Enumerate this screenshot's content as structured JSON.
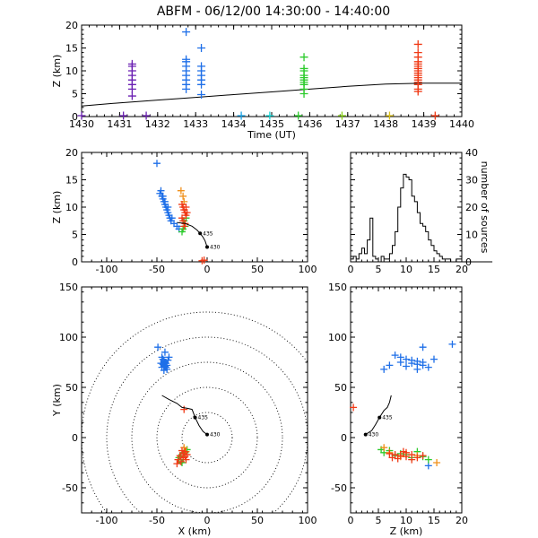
{
  "title": "ABFM - 06/12/00 14:30:00 - 14:40:00",
  "colors": {
    "purple": "#6a1fb2",
    "blue": "#1e6fe8",
    "lightblue": "#1aa4e8",
    "cyan": "#18d7d7",
    "green": "#2ccb2c",
    "lime": "#8ad21b",
    "yellow": "#ddc21a",
    "orange": "#f0901a",
    "red": "#f03a16",
    "track": "#000000"
  },
  "chart_data": [
    {
      "id": "time_height",
      "type": "scatter",
      "xlabel": "Time (UT)",
      "ylabel": "Z (km)",
      "xlim": [
        1430,
        1440
      ],
      "ylim": [
        0,
        20
      ],
      "xticks": [
        "1430",
        "1431",
        "1432",
        "1433",
        "1434",
        "1435",
        "1436",
        "1437",
        "1438",
        "1439",
        "1440"
      ],
      "yticks": [
        "0",
        "5",
        "10",
        "15",
        "20"
      ],
      "series": [
        {
          "color": "purple",
          "points": [
            [
              1431.33,
              4.5
            ],
            [
              1431.33,
              6
            ],
            [
              1431.33,
              7
            ],
            [
              1431.33,
              8
            ],
            [
              1431.33,
              9
            ],
            [
              1431.33,
              10
            ],
            [
              1431.33,
              11
            ],
            [
              1431.33,
              11.5
            ]
          ]
        },
        {
          "color": "blue",
          "points": [
            [
              1432.75,
              6
            ],
            [
              1432.75,
              7
            ],
            [
              1432.75,
              8
            ],
            [
              1432.75,
              9
            ],
            [
              1432.75,
              10
            ],
            [
              1432.75,
              11
            ],
            [
              1432.75,
              12
            ],
            [
              1432.75,
              12.5
            ],
            [
              1432.75,
              18.5
            ],
            [
              1433.15,
              4.8
            ],
            [
              1433.15,
              7
            ],
            [
              1433.15,
              8
            ],
            [
              1433.15,
              9
            ],
            [
              1433.15,
              10
            ],
            [
              1433.15,
              11
            ],
            [
              1433.15,
              15
            ]
          ]
        },
        {
          "color": "green",
          "points": [
            [
              1435.85,
              5
            ],
            [
              1435.85,
              6
            ],
            [
              1435.85,
              7
            ],
            [
              1435.85,
              7.5
            ],
            [
              1435.85,
              8
            ],
            [
              1435.85,
              8.5
            ],
            [
              1435.85,
              9
            ],
            [
              1435.85,
              10
            ],
            [
              1435.85,
              10.5
            ],
            [
              1435.85,
              13
            ]
          ]
        },
        {
          "color": "red",
          "points": [
            [
              1438.85,
              5.5
            ],
            [
              1438.85,
              6
            ],
            [
              1438.85,
              7
            ],
            [
              1438.85,
              7.5
            ],
            [
              1438.85,
              8
            ],
            [
              1438.85,
              8.5
            ],
            [
              1438.85,
              9
            ],
            [
              1438.85,
              9.5
            ],
            [
              1438.85,
              10
            ],
            [
              1438.85,
              10.5
            ],
            [
              1438.85,
              11
            ],
            [
              1438.85,
              11.5
            ],
            [
              1438.85,
              12
            ],
            [
              1438.85,
              13
            ],
            [
              1438.85,
              14
            ],
            [
              1438.85,
              15.8
            ]
          ]
        },
        {
          "color": "purple",
          "points": [
            [
              1430.0,
              0.2
            ],
            [
              1431.1,
              0.2
            ],
            [
              1431.7,
              0.2
            ]
          ]
        },
        {
          "color": "lightblue",
          "points": [
            [
              1434.2,
              0.2
            ]
          ]
        },
        {
          "color": "cyan",
          "points": [
            [
              1434.95,
              0.2
            ]
          ]
        },
        {
          "color": "green",
          "points": [
            [
              1435.7,
              0.2
            ]
          ]
        },
        {
          "color": "lime",
          "points": [
            [
              1436.85,
              0.2
            ]
          ]
        },
        {
          "color": "yellow",
          "points": [
            [
              1438.1,
              0.2
            ]
          ]
        },
        {
          "color": "red",
          "points": [
            [
              1439.3,
              0.2
            ]
          ]
        }
      ],
      "line": [
        [
          1430,
          2.3
        ],
        [
          1431,
          3.0
        ],
        [
          1432,
          3.6
        ],
        [
          1433,
          4.2
        ],
        [
          1434,
          4.8
        ],
        [
          1435,
          5.4
        ],
        [
          1436,
          6.0
        ],
        [
          1437,
          6.6
        ],
        [
          1438,
          7.1
        ],
        [
          1439,
          7.3
        ],
        [
          1440,
          7.3
        ]
      ]
    },
    {
      "id": "x_height",
      "type": "scatter",
      "xlabel": "",
      "ylabel": "Z (km)",
      "xlim": [
        -125,
        100
      ],
      "ylim": [
        0,
        20
      ],
      "xticks": [
        "-100",
        "-50",
        "0",
        "50",
        "100"
      ],
      "yticks": [
        "0",
        "5",
        "10",
        "15",
        "20"
      ],
      "series": [
        {
          "color": "blue",
          "points": [
            [
              -50,
              18
            ],
            [
              -46,
              13
            ],
            [
              -45,
              12
            ],
            [
              -44,
              11.5
            ],
            [
              -43,
              11
            ],
            [
              -42,
              10.5
            ],
            [
              -41,
              10
            ],
            [
              -40,
              9.5
            ],
            [
              -39,
              9
            ],
            [
              -38,
              8.5
            ],
            [
              -37,
              8
            ],
            [
              -36,
              7.5
            ],
            [
              -47,
              12.5
            ],
            [
              -44,
              12
            ],
            [
              -42,
              11
            ],
            [
              -39,
              10
            ],
            [
              -35,
              8
            ],
            [
              -33,
              7
            ],
            [
              -30,
              6.5
            ],
            [
              -28,
              6
            ]
          ]
        },
        {
          "color": "green",
          "points": [
            [
              -25,
              5.5
            ],
            [
              -24,
              6
            ],
            [
              -22,
              6.5
            ],
            [
              -23,
              7.5
            ],
            [
              -21,
              8
            ]
          ]
        },
        {
          "color": "orange",
          "points": [
            [
              -26,
              13
            ],
            [
              -24,
              12
            ],
            [
              -23,
              11
            ]
          ]
        },
        {
          "color": "red",
          "points": [
            [
              -25,
              10.5
            ],
            [
              -24,
              10
            ],
            [
              -23,
              9.5
            ],
            [
              -22,
              9
            ],
            [
              -21,
              8.5
            ],
            [
              -25,
              8
            ],
            [
              -24,
              7.5
            ],
            [
              -22,
              7
            ],
            [
              -21,
              10
            ],
            [
              -20,
              9
            ],
            [
              -23,
              6.5
            ],
            [
              -5,
              0.2
            ],
            [
              -3,
              0.3
            ]
          ]
        }
      ],
      "track": [
        [
          -30,
          7.2
        ],
        [
          -22,
          7.0
        ],
        [
          -15,
          6.5
        ],
        [
          -10,
          5.8
        ],
        [
          -7,
          5.2
        ],
        [
          -4,
          4.5
        ],
        [
          -2,
          3.8
        ],
        [
          0,
          2.7
        ]
      ],
      "track_labels": [
        "435",
        "430"
      ]
    },
    {
      "id": "histogram",
      "type": "bar",
      "xlabel": "",
      "ylabel": "number of sources",
      "xlim": [
        0,
        20
      ],
      "ylim": [
        0,
        40
      ],
      "xticks": [
        "0",
        "5",
        "10",
        "15",
        "20"
      ],
      "yticks": [
        "0",
        "10",
        "20",
        "30",
        "40"
      ],
      "bin_width": 0.5,
      "values": [
        1,
        2,
        1,
        3,
        5,
        3,
        8,
        16,
        2,
        1,
        0,
        2,
        1,
        1,
        3,
        6,
        11,
        20,
        27,
        32,
        31,
        30,
        24,
        22,
        18,
        14,
        13,
        11,
        8,
        6,
        4,
        3,
        2,
        1,
        1,
        1,
        0,
        0,
        1,
        1,
        0,
        0,
        0,
        0,
        0,
        0,
        0,
        0,
        0,
        0,
        0
      ]
    },
    {
      "id": "x_y",
      "type": "scatter",
      "xlabel": "X (km)",
      "ylabel": "Y (km)",
      "xlim": [
        -125,
        100
      ],
      "ylim": [
        -75,
        150
      ],
      "xticks": [
        "-100",
        "-50",
        "0",
        "50",
        "100"
      ],
      "yticks": [
        "-50",
        "0",
        "50",
        "100",
        "150"
      ],
      "range_rings_km": [
        25,
        50,
        75,
        100,
        125
      ],
      "series": [
        {
          "color": "blue",
          "points": [
            [
              -49,
              90
            ],
            [
              -42,
              85
            ],
            [
              -45,
              80
            ],
            [
              -44,
              78
            ],
            [
              -43,
              76
            ],
            [
              -42,
              75
            ],
            [
              -41,
              74
            ],
            [
              -44,
              73
            ],
            [
              -43,
              72
            ],
            [
              -42,
              71
            ],
            [
              -41,
              70
            ],
            [
              -40,
              72
            ],
            [
              -40,
              68
            ],
            [
              -39,
              77
            ],
            [
              -46,
              74
            ],
            [
              -38,
              80
            ],
            [
              -45,
              70
            ],
            [
              -43,
              67
            ]
          ]
        },
        {
          "color": "green",
          "points": [
            [
              -28,
              -20
            ],
            [
              -26,
              -18
            ],
            [
              -24,
              -22
            ],
            [
              -22,
              -15
            ],
            [
              -20,
              -12
            ],
            [
              -25,
              -25
            ]
          ]
        },
        {
          "color": "orange",
          "points": [
            [
              -23,
              -10
            ],
            [
              -21,
              -14
            ]
          ]
        },
        {
          "color": "red",
          "points": [
            [
              -30,
              -26
            ],
            [
              -26,
              -24
            ],
            [
              -24,
              -20
            ],
            [
              -22,
              -19
            ],
            [
              -24,
              -16
            ],
            [
              -22,
              -14
            ],
            [
              -21,
              -22
            ],
            [
              -27,
              -18
            ],
            [
              -20,
              -17
            ],
            [
              -25,
              -13
            ],
            [
              -29,
              -22
            ],
            [
              -23,
              28
            ]
          ]
        }
      ],
      "track": [
        [
          -45,
          42
        ],
        [
          -38,
          38
        ],
        [
          -30,
          34
        ],
        [
          -25,
          30
        ],
        [
          -19,
          29
        ],
        [
          -15,
          28
        ],
        [
          -12,
          20
        ],
        [
          -8,
          12
        ],
        [
          -4,
          6
        ],
        [
          0,
          3
        ]
      ],
      "track_labels": [
        "435",
        "430"
      ]
    },
    {
      "id": "z_y",
      "type": "scatter",
      "xlabel": "Z (km)",
      "ylabel": "",
      "xlim": [
        0,
        20
      ],
      "ylim": [
        -75,
        150
      ],
      "xticks": [
        "0",
        "5",
        "10",
        "15",
        "20"
      ],
      "yticks": [
        "-50",
        "0",
        "50",
        "100",
        "150"
      ],
      "series": [
        {
          "color": "blue",
          "points": [
            [
              18.3,
              93
            ],
            [
              13,
              90
            ],
            [
              8,
              82
            ],
            [
              9,
              80
            ],
            [
              10,
              78
            ],
            [
              11,
              77
            ],
            [
              12,
              76
            ],
            [
              13,
              75
            ],
            [
              11,
              74
            ],
            [
              12,
              73
            ],
            [
              13,
              72
            ],
            [
              10,
              71
            ],
            [
              14,
              70
            ],
            [
              9,
              75
            ],
            [
              7,
              72
            ],
            [
              15,
              78
            ],
            [
              6,
              68
            ],
            [
              12,
              68
            ],
            [
              14,
              -28
            ]
          ]
        },
        {
          "color": "green",
          "points": [
            [
              5.5,
              -12
            ],
            [
              6,
              -15
            ],
            [
              7,
              -13
            ],
            [
              8,
              -18
            ],
            [
              9,
              -16
            ],
            [
              10,
              -17
            ],
            [
              11,
              -20
            ],
            [
              13,
              -19
            ],
            [
              12,
              -14
            ],
            [
              14,
              -22
            ]
          ]
        },
        {
          "color": "orange",
          "points": [
            [
              6,
              -10
            ],
            [
              7,
              -15
            ],
            [
              9,
              -19
            ],
            [
              12,
              -18
            ],
            [
              15.5,
              -25
            ]
          ]
        },
        {
          "color": "red",
          "points": [
            [
              0.5,
              30
            ],
            [
              7,
              -16
            ],
            [
              8,
              -17
            ],
            [
              9,
              -18
            ],
            [
              10,
              -19
            ],
            [
              11,
              -17
            ],
            [
              12,
              -20
            ],
            [
              8.5,
              -21
            ],
            [
              10,
              -15
            ],
            [
              11,
              -22
            ],
            [
              13,
              -18
            ],
            [
              7.5,
              -20
            ],
            [
              9.5,
              -14
            ]
          ]
        }
      ],
      "track": [
        [
          7.3,
          42
        ],
        [
          7.0,
          35
        ],
        [
          6.6,
          30
        ],
        [
          6.0,
          27
        ],
        [
          5.2,
          20
        ],
        [
          4.5,
          13
        ],
        [
          3.8,
          7
        ],
        [
          2.7,
          3
        ]
      ],
      "track_labels": [
        "435",
        "430"
      ]
    }
  ]
}
